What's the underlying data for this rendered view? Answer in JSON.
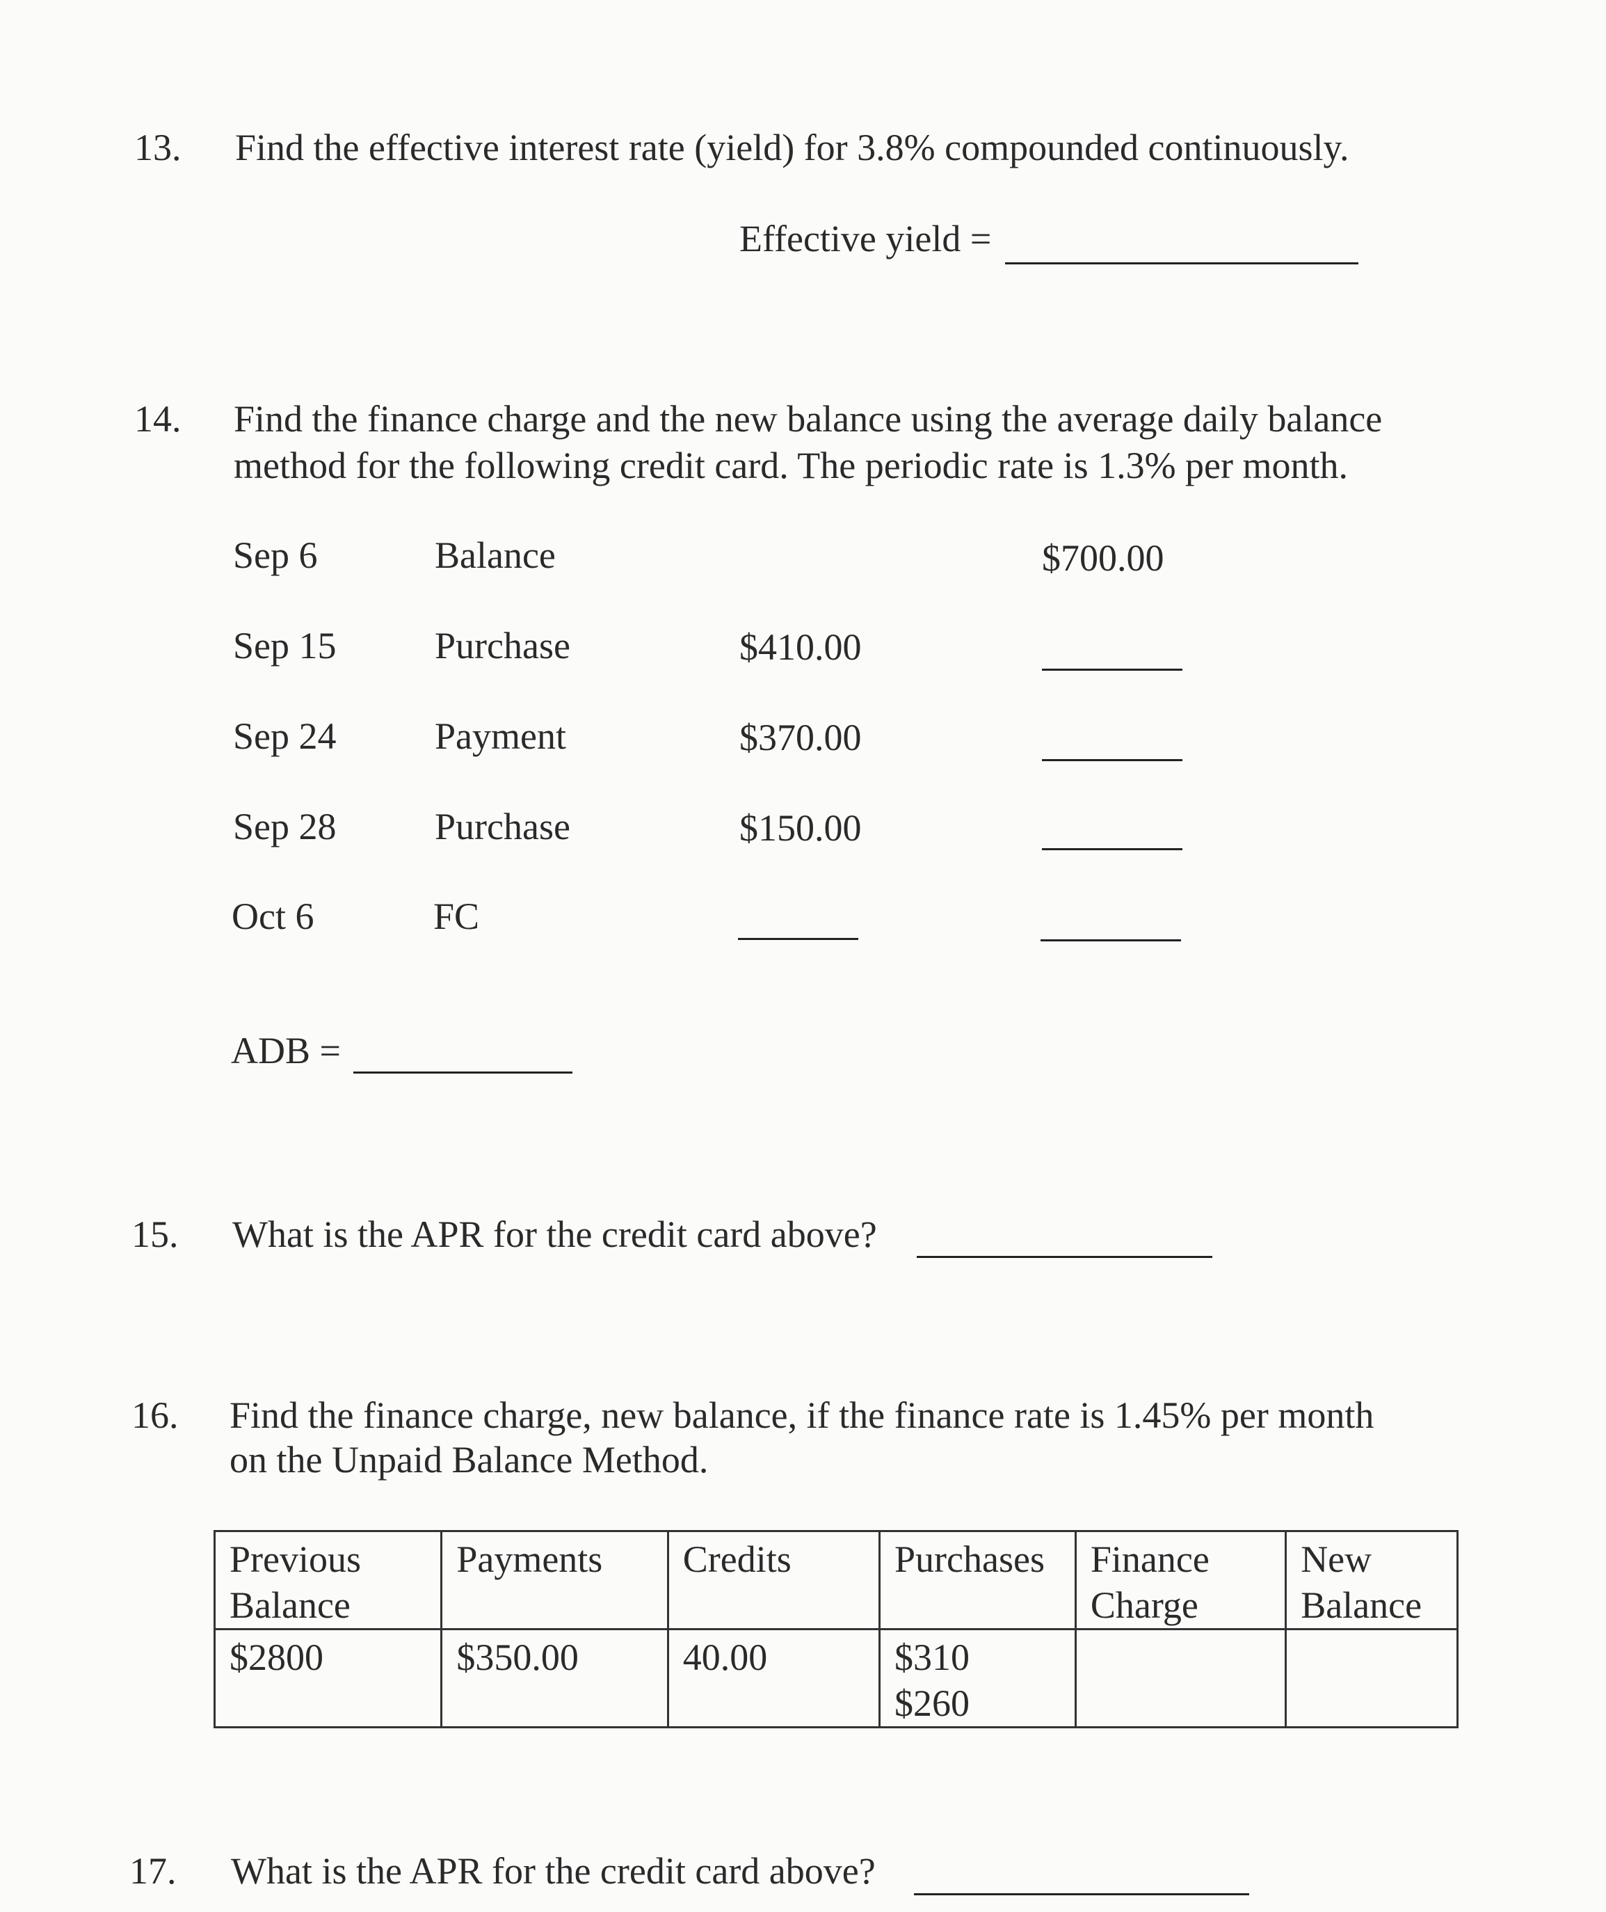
{
  "q13": {
    "number": "13.",
    "text": "Find the effective interest rate (yield) for 3.8% compounded continuously.",
    "answer_label": "Effective yield ="
  },
  "q14": {
    "number": "14.",
    "line1": "Find the finance charge and the new balance using the average daily balance",
    "line2": "method for the following credit card.  The periodic rate is 1.3% per month.",
    "rows": [
      {
        "date": "Sep 6",
        "desc": "Balance",
        "amount": "",
        "balance": "$700.00"
      },
      {
        "date": "Sep 15",
        "desc": "Purchase",
        "amount": "$410.00",
        "balance": ""
      },
      {
        "date": "Sep 24",
        "desc": "Payment",
        "amount": "$370.00",
        "balance": ""
      },
      {
        "date": "Sep 28",
        "desc": "Purchase",
        "amount": "$150.00",
        "balance": ""
      },
      {
        "date": "Oct 6",
        "desc": "FC",
        "amount": "",
        "balance": ""
      }
    ],
    "adb_label": "ADB ="
  },
  "q15": {
    "number": "15.",
    "text": "What is the APR for the credit card above?"
  },
  "q16": {
    "number": "16.",
    "line1": "Find the finance charge, new balance, if the finance rate is 1.45% per month",
    "line2": "on the Unpaid Balance Method.",
    "headers": [
      [
        "Previous",
        "Balance"
      ],
      [
        "Payments",
        ""
      ],
      [
        "Credits",
        ""
      ],
      [
        "Purchases",
        ""
      ],
      [
        "Finance",
        "Charge"
      ],
      [
        "New",
        "Balance"
      ]
    ],
    "values": [
      [
        "$2800",
        ""
      ],
      [
        "$350.00",
        ""
      ],
      [
        "40.00",
        ""
      ],
      [
        "$310",
        "$260"
      ],
      [
        "",
        ""
      ],
      [
        "",
        ""
      ]
    ]
  },
  "q17": {
    "number": "17.",
    "text": "What is the APR for the credit card above?"
  }
}
